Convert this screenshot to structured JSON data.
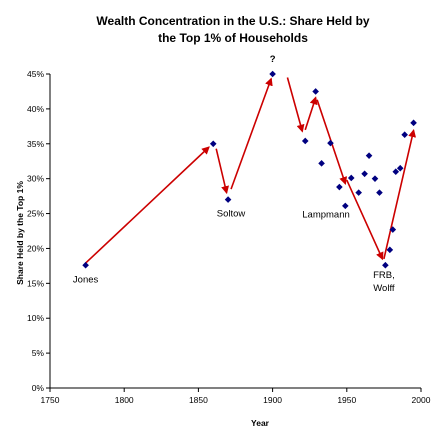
{
  "chart_data": {
    "type": "scatter",
    "title_lines": [
      "Wealth Concentration in the U.S.: Share Held by",
      "the Top 1% of Households"
    ],
    "xlabel": "Year",
    "ylabel": "Share Held by the Top 1%",
    "xlim": [
      1750,
      2000
    ],
    "ylim": [
      0,
      45
    ],
    "x_ticks": [
      1750,
      1800,
      1850,
      1900,
      1950,
      2000
    ],
    "y_ticks": [
      0,
      5,
      10,
      15,
      20,
      25,
      30,
      35,
      40,
      45
    ],
    "y_tick_suffix": "%",
    "grid": false,
    "marker_color": "#000080",
    "arrow_color": "#cc0000",
    "points": [
      {
        "x": 1774,
        "y": 17.6
      },
      {
        "x": 1860,
        "y": 35.0
      },
      {
        "x": 1870,
        "y": 27.0
      },
      {
        "x": 1900,
        "y": 45.0
      },
      {
        "x": 1922,
        "y": 35.4
      },
      {
        "x": 1929,
        "y": 42.5
      },
      {
        "x": 1933,
        "y": 32.2
      },
      {
        "x": 1939,
        "y": 35.1
      },
      {
        "x": 1945,
        "y": 28.8
      },
      {
        "x": 1949,
        "y": 26.1
      },
      {
        "x": 1953,
        "y": 30.1
      },
      {
        "x": 1958,
        "y": 28.0
      },
      {
        "x": 1962,
        "y": 30.7
      },
      {
        "x": 1965,
        "y": 33.3
      },
      {
        "x": 1969,
        "y": 30.0
      },
      {
        "x": 1972,
        "y": 28.0
      },
      {
        "x": 1976,
        "y": 17.6
      },
      {
        "x": 1979,
        "y": 19.8
      },
      {
        "x": 1981,
        "y": 22.7
      },
      {
        "x": 1983,
        "y": 31.0
      },
      {
        "x": 1986,
        "y": 31.5
      },
      {
        "x": 1989,
        "y": 36.3
      },
      {
        "x": 1995,
        "y": 38.0
      }
    ],
    "trend_arrows": [
      {
        "from": [
          1774,
          17.9
        ],
        "to": [
          1857,
          34.5
        ]
      },
      {
        "from": [
          1862,
          34.3
        ],
        "to": [
          1869,
          28.0
        ]
      },
      {
        "from": [
          1872,
          28.5
        ],
        "to": [
          1899,
          44.3
        ]
      },
      {
        "from": [
          1910,
          44.5
        ],
        "to": [
          1920,
          36.8
        ]
      },
      {
        "from": [
          1922,
          37.0
        ],
        "to": [
          1929,
          41.6
        ]
      },
      {
        "from": [
          1930,
          41.3
        ],
        "to": [
          1949,
          29.3
        ]
      },
      {
        "from": [
          1950,
          29.8
        ],
        "to": [
          1974,
          18.5
        ]
      },
      {
        "from": [
          1975,
          18.5
        ],
        "to": [
          1995,
          36.9
        ]
      }
    ],
    "annotations": [
      {
        "text": "Jones",
        "x": 1774,
        "y": 15.1
      },
      {
        "text": "Soltow",
        "x": 1872,
        "y": 24.6
      },
      {
        "text": "?",
        "x": 1900,
        "y": 46.7
      },
      {
        "text": "Lampmann",
        "x": 1936,
        "y": 24.4
      },
      {
        "text": "FRB,",
        "x": 1975,
        "y": 15.8
      },
      {
        "text": "Wolff",
        "x": 1975,
        "y": 13.9
      }
    ]
  }
}
